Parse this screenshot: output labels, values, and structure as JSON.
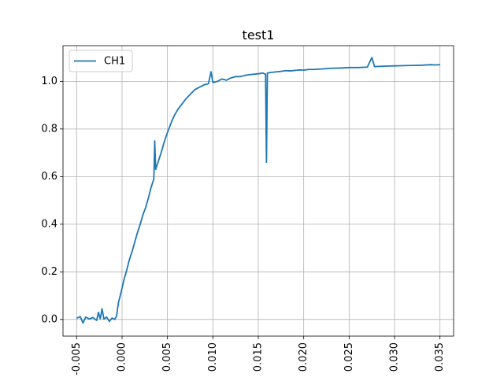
{
  "chart_data": {
    "type": "line",
    "title": "test1",
    "xlabel": "",
    "ylabel": "",
    "xlim": [
      -0.0065,
      0.0365
    ],
    "ylim": [
      -0.07,
      1.15
    ],
    "x_ticks": [
      -0.005,
      0.0,
      0.005,
      0.01,
      0.015,
      0.02,
      0.025,
      0.03,
      0.035
    ],
    "x_tick_labels": [
      "-0.005",
      "0.000",
      "0.005",
      "0.010",
      "0.015",
      "0.020",
      "0.025",
      "0.030",
      "0.035"
    ],
    "y_ticks": [
      0.0,
      0.2,
      0.4,
      0.6,
      0.8,
      1.0
    ],
    "y_tick_labels": [
      "0.0",
      "0.2",
      "0.4",
      "0.6",
      "0.8",
      "1.0"
    ],
    "grid": true,
    "legend": "upper-left",
    "x_tick_rotation": "vertical",
    "series": [
      {
        "name": "CH1",
        "color": "#1f77b4",
        "points": [
          [
            -0.005,
            0.005
          ],
          [
            -0.0046,
            0.012
          ],
          [
            -0.0043,
            -0.015
          ],
          [
            -0.004,
            0.01
          ],
          [
            -0.0036,
            0.002
          ],
          [
            -0.0032,
            0.008
          ],
          [
            -0.0028,
            -0.004
          ],
          [
            -0.0026,
            0.03
          ],
          [
            -0.0024,
            0.003
          ],
          [
            -0.0022,
            0.045
          ],
          [
            -0.002,
            0.002
          ],
          [
            -0.0017,
            0.01
          ],
          [
            -0.0014,
            -0.008
          ],
          [
            -0.0011,
            0.006
          ],
          [
            -0.0008,
            0.0
          ],
          [
            -0.0006,
            0.015
          ],
          [
            -0.0004,
            0.07
          ],
          [
            -0.0001,
            0.115
          ],
          [
            0.0002,
            0.165
          ],
          [
            0.0005,
            0.205
          ],
          [
            0.0008,
            0.25
          ],
          [
            0.0011,
            0.285
          ],
          [
            0.0014,
            0.325
          ],
          [
            0.0017,
            0.365
          ],
          [
            0.002,
            0.4
          ],
          [
            0.0023,
            0.44
          ],
          [
            0.0026,
            0.47
          ],
          [
            0.0029,
            0.51
          ],
          [
            0.0032,
            0.555
          ],
          [
            0.0035,
            0.59
          ],
          [
            0.0036,
            0.75
          ],
          [
            0.0037,
            0.63
          ],
          [
            0.004,
            0.665
          ],
          [
            0.0043,
            0.7
          ],
          [
            0.0046,
            0.74
          ],
          [
            0.0049,
            0.775
          ],
          [
            0.0052,
            0.805
          ],
          [
            0.0055,
            0.835
          ],
          [
            0.0058,
            0.86
          ],
          [
            0.0062,
            0.885
          ],
          [
            0.0066,
            0.905
          ],
          [
            0.007,
            0.925
          ],
          [
            0.0075,
            0.945
          ],
          [
            0.008,
            0.965
          ],
          [
            0.0085,
            0.975
          ],
          [
            0.009,
            0.985
          ],
          [
            0.0095,
            0.99
          ],
          [
            0.0098,
            1.04
          ],
          [
            0.01,
            0.995
          ],
          [
            0.0105,
            1.0
          ],
          [
            0.011,
            1.01
          ],
          [
            0.0115,
            1.005
          ],
          [
            0.012,
            1.015
          ],
          [
            0.0125,
            1.02
          ],
          [
            0.013,
            1.02
          ],
          [
            0.0135,
            1.025
          ],
          [
            0.014,
            1.028
          ],
          [
            0.0145,
            1.03
          ],
          [
            0.015,
            1.032
          ],
          [
            0.0155,
            1.035
          ],
          [
            0.0158,
            1.03
          ],
          [
            0.0159,
            0.66
          ],
          [
            0.016,
            1.035
          ],
          [
            0.0165,
            1.038
          ],
          [
            0.017,
            1.04
          ],
          [
            0.0175,
            1.042
          ],
          [
            0.018,
            1.045
          ],
          [
            0.0185,
            1.044
          ],
          [
            0.019,
            1.046
          ],
          [
            0.0195,
            1.048
          ],
          [
            0.02,
            1.047
          ],
          [
            0.0205,
            1.05
          ],
          [
            0.021,
            1.05
          ],
          [
            0.022,
            1.052
          ],
          [
            0.023,
            1.055
          ],
          [
            0.024,
            1.056
          ],
          [
            0.025,
            1.058
          ],
          [
            0.026,
            1.058
          ],
          [
            0.027,
            1.06
          ],
          [
            0.0275,
            1.1
          ],
          [
            0.0278,
            1.062
          ],
          [
            0.0285,
            1.063
          ],
          [
            0.029,
            1.064
          ],
          [
            0.03,
            1.065
          ],
          [
            0.031,
            1.066
          ],
          [
            0.032,
            1.067
          ],
          [
            0.033,
            1.068
          ],
          [
            0.034,
            1.07
          ],
          [
            0.0345,
            1.069
          ],
          [
            0.035,
            1.07
          ]
        ]
      }
    ]
  }
}
